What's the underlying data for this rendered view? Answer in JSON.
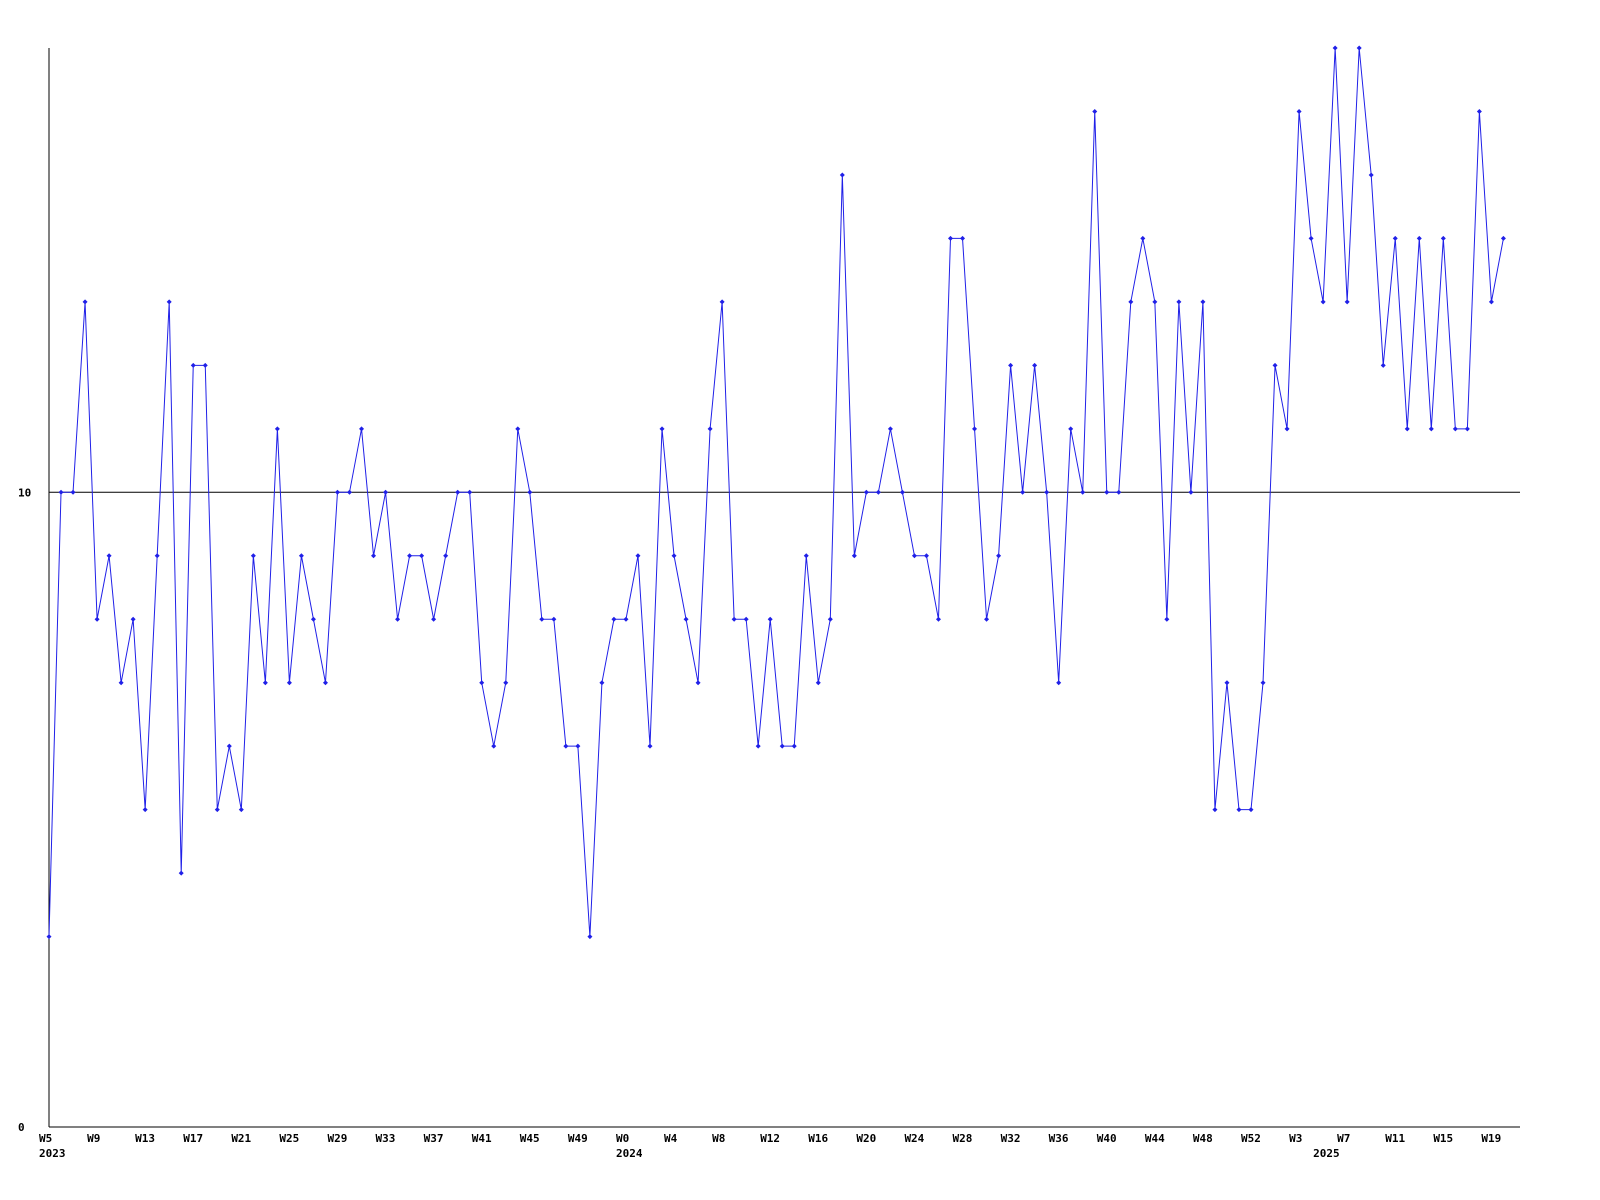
{
  "chart_data": {
    "type": "line",
    "categories": [
      "W5",
      null,
      null,
      null,
      "W9",
      null,
      null,
      null,
      "W13",
      null,
      null,
      null,
      "W17",
      null,
      null,
      null,
      "W21",
      null,
      null,
      null,
      "W25",
      null,
      null,
      null,
      "W29",
      null,
      null,
      null,
      "W33",
      null,
      null,
      null,
      "W37",
      null,
      null,
      null,
      "W41",
      null,
      null,
      null,
      "W45",
      null,
      null,
      null,
      "W49",
      null,
      null,
      null,
      "W0",
      null,
      null,
      null,
      "W4",
      null,
      null,
      null,
      "W8",
      null,
      null,
      null,
      "W12",
      null,
      null,
      null,
      "W16",
      null,
      null,
      null,
      "W20",
      null,
      null,
      null,
      "W24",
      null,
      null,
      null,
      "W28",
      null,
      null,
      null,
      "W32",
      null,
      null,
      null,
      "W36",
      null,
      null,
      null,
      "W40",
      null,
      null,
      null,
      "W44",
      null,
      null,
      null,
      "W48",
      null,
      null,
      null,
      "W52",
      null,
      null,
      null,
      "W3",
      null,
      null,
      null,
      "W7",
      null,
      null,
      null,
      "W11",
      null,
      null,
      null,
      "W15",
      null,
      null,
      null,
      "W19",
      null
    ],
    "category_years": [
      "2023",
      null,
      null,
      null,
      null,
      null,
      null,
      null,
      null,
      null,
      null,
      null,
      null,
      null,
      null,
      null,
      null,
      null,
      null,
      null,
      null,
      null,
      null,
      null,
      null,
      null,
      null,
      null,
      null,
      null,
      null,
      null,
      null,
      null,
      null,
      null,
      null,
      null,
      null,
      null,
      null,
      null,
      null,
      null,
      null,
      null,
      null,
      null,
      "2024",
      null,
      null,
      null,
      null,
      null,
      null,
      null,
      null,
      null,
      null,
      null,
      null,
      null,
      null,
      null,
      null,
      null,
      null,
      null,
      null,
      null,
      null,
      null,
      null,
      null,
      null,
      null,
      null,
      null,
      null,
      null,
      null,
      null,
      null,
      null,
      null,
      null,
      null,
      null,
      null,
      null,
      null,
      null,
      null,
      null,
      null,
      null,
      null,
      null,
      null,
      null,
      null,
      null,
      null,
      null,
      null,
      null,
      "2025",
      null,
      null,
      null,
      null,
      null,
      null,
      null,
      null,
      null,
      null,
      null,
      null,
      null,
      null,
      null,
      null,
      null
    ],
    "series": [
      {
        "color": "#2020e8",
        "values": [
          3,
          10,
          10,
          13,
          8,
          9,
          7,
          8,
          5,
          9,
          13,
          4,
          12,
          12,
          5,
          6,
          5,
          9,
          7,
          11,
          7,
          9,
          8,
          7,
          10,
          10,
          11,
          9,
          10,
          8,
          9,
          9,
          8,
          9,
          10,
          10,
          7,
          6,
          7,
          11,
          10,
          8,
          8,
          6,
          6,
          3,
          7,
          8,
          8,
          9,
          6,
          11,
          9,
          8,
          7,
          11,
          13,
          8,
          8,
          6,
          8,
          6,
          6,
          9,
          7,
          8,
          15,
          9,
          10,
          10,
          11,
          10,
          9,
          9,
          8,
          14,
          14,
          11,
          8,
          9,
          12,
          10,
          12,
          10,
          7,
          11,
          10,
          16,
          10,
          10,
          13,
          14,
          13,
          8,
          13,
          10,
          13,
          5,
          7,
          5,
          5,
          7,
          12,
          11,
          16,
          14,
          13,
          17,
          13,
          17,
          15,
          12,
          14,
          11,
          14,
          11,
          14,
          11,
          11,
          16,
          13,
          14
        ]
      }
    ],
    "ylim": [
      0,
      17
    ],
    "yticks": [
      0,
      10
    ],
    "grid": true
  }
}
